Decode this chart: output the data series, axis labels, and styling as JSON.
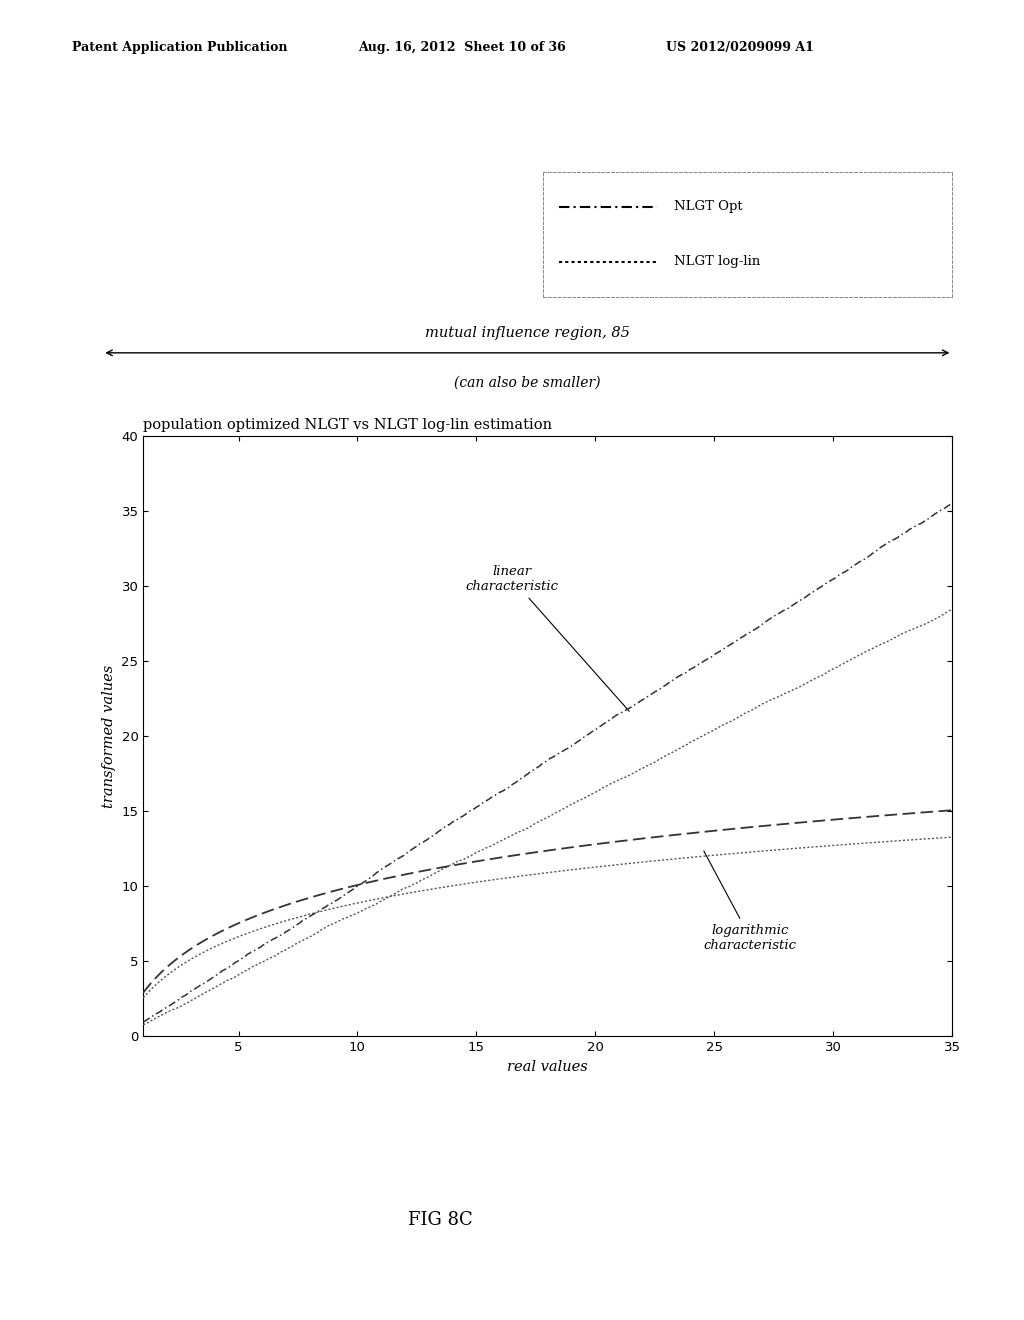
{
  "header_left": "Patent Application Publication",
  "header_mid": "Aug. 16, 2012  Sheet 10 of 36",
  "header_right": "US 2012/0209099 A1",
  "legend_entries": [
    "NLGT Opt",
    "NLGT log-lin"
  ],
  "arrow_label": "mutual influence region, 85",
  "arrow_sublabel": "(can also be smaller)",
  "plot_title": "population optimized NLGT vs NLGT log-lin estimation",
  "xlabel": "real values",
  "ylabel": "transformed values",
  "xlim": [
    1,
    35
  ],
  "ylim": [
    0,
    40
  ],
  "xticks": [
    5,
    10,
    15,
    20,
    25,
    30,
    35
  ],
  "yticks": [
    0,
    5,
    10,
    15,
    20,
    25,
    30,
    35,
    40
  ],
  "annotation_linear": "linear\ncharacteristic",
  "annotation_log": "logarithmic\ncharacteristic",
  "fig_label": "FIG 8C",
  "background_color": "#ffffff"
}
